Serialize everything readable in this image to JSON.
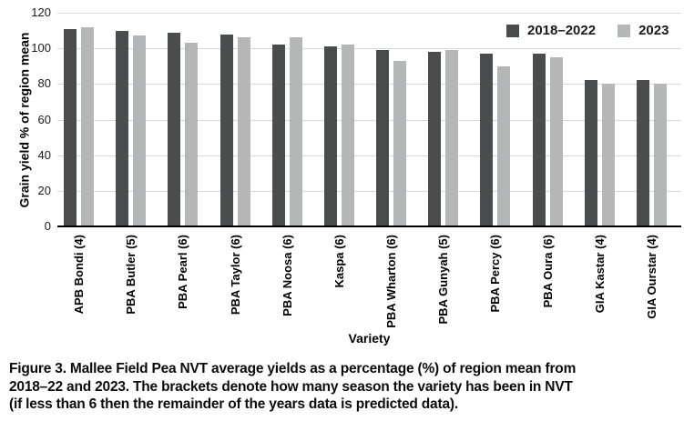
{
  "chart_data": {
    "type": "bar",
    "title": "",
    "categories": [
      "APB Bondi (4)",
      "PBA Butler (5)",
      "PBA Pearl (6)",
      "PBA Taylor (6)",
      "PBA Noosa (6)",
      "Kaspa (6)",
      "PBA Wharton (6)",
      "PBA Gunyah (5)",
      "PBA Percy (6)",
      "PBA Oura (6)",
      "GIA Kastar (4)",
      "GIA Ourstar (4)"
    ],
    "series": [
      {
        "name": "2018–2022",
        "color": "#4b4c4e",
        "values": [
          111,
          110,
          109,
          108,
          102,
          101,
          99,
          98,
          97,
          97,
          82,
          82
        ]
      },
      {
        "name": "2023",
        "color": "#b4b6b8",
        "values": [
          112,
          107,
          103,
          106,
          106,
          102,
          93,
          99,
          90,
          95,
          80,
          80
        ]
      }
    ],
    "xlabel": "Variety",
    "ylabel": "Grain yield % of region mean",
    "ylim": [
      0,
      120
    ],
    "yticks": [
      0,
      20,
      40,
      60,
      80,
      100,
      120
    ],
    "grid": true,
    "gridline_color": "#d9d9d9",
    "legend_position": "top-right"
  },
  "caption": "Figure 3. Mallee Field Pea NVT average yields as a percentage (%) of region mean from\n2018–22 and 2023. The brackets denote how many season the variety has been in NVT\n(if less than 6 then the remainder of the years data is predicted data)."
}
